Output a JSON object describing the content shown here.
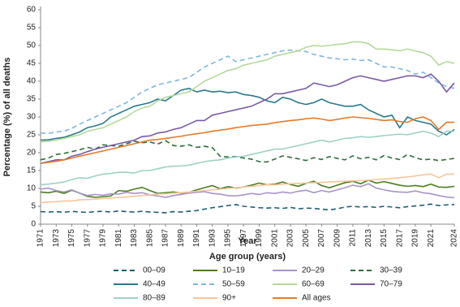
{
  "chart_data": {
    "type": "line",
    "y_label": "Percentage (%) of all deaths",
    "x_label": "Year",
    "legend_title": "Age group (years)",
    "x": [
      1971,
      1972,
      1973,
      1974,
      1975,
      1976,
      1977,
      1978,
      1979,
      1980,
      1981,
      1982,
      1983,
      1984,
      1985,
      1986,
      1987,
      1988,
      1989,
      1990,
      1991,
      1992,
      1993,
      1994,
      1995,
      1996,
      1997,
      1998,
      1999,
      2000,
      2001,
      2002,
      2003,
      2004,
      2005,
      2006,
      2007,
      2008,
      2009,
      2010,
      2011,
      2012,
      2013,
      2014,
      2015,
      2016,
      2017,
      2018,
      2019,
      2020,
      2021,
      2022,
      2023,
      2024
    ],
    "xlim": [
      1971,
      2024
    ],
    "xticks": [
      1971,
      1973,
      1975,
      1977,
      1979,
      1981,
      1983,
      1985,
      1987,
      1989,
      1991,
      1993,
      1995,
      1997,
      1999,
      2001,
      2003,
      2005,
      2007,
      2009,
      2011,
      2013,
      2015,
      2017,
      2019,
      2021,
      2024
    ],
    "ylim": [
      0,
      60
    ],
    "yticks": [
      0,
      5,
      10,
      15,
      20,
      25,
      30,
      35,
      40,
      45,
      50,
      55,
      60
    ],
    "grid": false,
    "legend_position": "bottom",
    "series": [
      {
        "name": "00–09",
        "color": "#1d5c73",
        "dashed": true,
        "values": [
          3.5,
          3.4,
          3.5,
          3.3,
          3.6,
          3.4,
          3.3,
          3.5,
          3.6,
          3.4,
          3.7,
          3.5,
          3.4,
          3.6,
          3.4,
          3.3,
          3.2,
          3.5,
          3.4,
          3.6,
          3.8,
          4.2,
          4.6,
          4.9,
          5.2,
          5.5,
          5.0,
          4.8,
          4.6,
          4.5,
          4.6,
          4.4,
          4.7,
          4.3,
          4.5,
          4.4,
          4.2,
          4.0,
          4.3,
          4.8,
          5.0,
          4.8,
          4.9,
          4.7,
          5.0,
          4.8,
          4.6,
          4.9,
          5.1,
          5.3,
          5.6,
          5.2,
          5.4,
          5.5
        ]
      },
      {
        "name": "10–19",
        "color": "#4a7c1f",
        "dashed": false,
        "values": [
          9.0,
          8.8,
          9.2,
          8.6,
          9.5,
          8.7,
          7.8,
          7.5,
          7.7,
          7.9,
          9.4,
          9.2,
          9.8,
          10.3,
          9.4,
          8.6,
          8.8,
          9.0,
          8.7,
          8.9,
          9.6,
          10.2,
          10.8,
          9.9,
          10.5,
          10.1,
          10.4,
          10.9,
          11.5,
          11.0,
          11.2,
          11.8,
          11.1,
          10.6,
          11.4,
          12.0,
          10.8,
          10.2,
          10.9,
          11.6,
          12.0,
          11.3,
          12.3,
          11.5,
          11.9,
          11.4,
          10.9,
          10.6,
          10.8,
          10.5,
          11.2,
          10.4,
          10.3,
          10.6
        ]
      },
      {
        "name": "20–29",
        "color": "#a894c8",
        "dashed": false,
        "values": [
          9.8,
          10.1,
          9.4,
          9.0,
          9.6,
          8.7,
          8.0,
          8.3,
          8.1,
          8.5,
          8.4,
          8.9,
          8.6,
          8.8,
          8.2,
          7.9,
          7.5,
          8.0,
          8.3,
          8.7,
          8.9,
          9.1,
          8.6,
          8.4,
          8.0,
          7.9,
          8.2,
          8.6,
          8.3,
          8.8,
          8.6,
          9.0,
          8.7,
          9.2,
          9.5,
          8.8,
          9.4,
          9.0,
          9.6,
          10.2,
          10.9,
          10.5,
          11.3,
          10.1,
          9.6,
          9.2,
          9.0,
          8.9,
          9.3,
          8.8,
          8.5,
          8.0,
          7.6,
          7.4
        ]
      },
      {
        "name": "30–39",
        "color": "#2c6e3b",
        "dashed": true,
        "values": [
          18.0,
          18.5,
          19.5,
          19.8,
          20.3,
          20.8,
          21.5,
          21.0,
          22.2,
          22.0,
          21.8,
          22.5,
          23.2,
          22.8,
          23.0,
          22.4,
          23.4,
          22.0,
          21.8,
          22.2,
          21.5,
          21.8,
          21.4,
          19.0,
          18.8,
          18.9,
          18.5,
          18.2,
          17.5,
          17.4,
          18.2,
          19.1,
          18.7,
          18.3,
          17.8,
          18.6,
          18.1,
          18.9,
          18.4,
          18.0,
          19.1,
          18.3,
          18.7,
          18.0,
          19.2,
          18.5,
          18.1,
          19.5,
          18.6,
          18.0,
          18.2,
          17.8,
          18.1,
          18.4
        ]
      },
      {
        "name": "40–49",
        "color": "#2a7a8c",
        "dashed": false,
        "values": [
          23.5,
          23.6,
          24.0,
          24.3,
          25.0,
          25.8,
          27.0,
          27.5,
          28.2,
          30.0,
          31.0,
          32.0,
          33.0,
          33.5,
          34.0,
          35.0,
          34.5,
          36.0,
          37.5,
          38.0,
          37.0,
          37.5,
          37.0,
          37.2,
          36.8,
          37.0,
          36.3,
          36.0,
          35.5,
          34.5,
          34.0,
          35.5,
          35.0,
          34.0,
          33.5,
          34.0,
          35.0,
          34.0,
          33.5,
          33.0,
          33.0,
          33.5,
          32.0,
          31.0,
          30.0,
          30.5,
          27.0,
          30.0,
          29.0,
          28.5,
          28.0,
          26.0,
          25.0,
          26.5
        ]
      },
      {
        "name": "50–59",
        "color": "#7fb8dd",
        "dashed": true,
        "values": [
          25.5,
          25.4,
          25.8,
          26.0,
          26.8,
          28.0,
          29.0,
          30.0,
          31.0,
          32.0,
          33.0,
          34.0,
          35.5,
          37.0,
          38.0,
          39.0,
          39.5,
          40.0,
          40.5,
          41.0,
          42.5,
          44.0,
          45.0,
          46.0,
          47.0,
          45.5,
          46.0,
          46.5,
          47.0,
          47.5,
          48.0,
          48.5,
          48.7,
          48.5,
          48.3,
          47.5,
          47.0,
          46.5,
          46.3,
          46.0,
          46.2,
          45.8,
          46.0,
          45.0,
          44.0,
          44.0,
          43.5,
          43.0,
          42.0,
          42.5,
          41.0,
          39.5,
          38.5,
          38.0
        ]
      },
      {
        "name": "60–69",
        "color": "#b5d99a",
        "dashed": false,
        "values": [
          23.0,
          23.2,
          23.5,
          24.0,
          24.5,
          25.0,
          26.0,
          26.5,
          27.0,
          28.0,
          29.0,
          30.0,
          31.5,
          32.5,
          33.0,
          34.5,
          35.5,
          36.0,
          36.5,
          37.0,
          38.5,
          40.0,
          41.0,
          42.0,
          43.0,
          43.5,
          44.5,
          45.0,
          45.5,
          46.0,
          47.0,
          47.5,
          48.0,
          48.5,
          49.5,
          50.0,
          49.8,
          50.0,
          50.3,
          50.5,
          51.0,
          51.0,
          50.5,
          49.0,
          49.0,
          48.8,
          48.5,
          49.0,
          48.5,
          48.0,
          47.0,
          44.5,
          45.5,
          45.0
        ]
      },
      {
        "name": "70–79",
        "color": "#7a5aa6",
        "dashed": false,
        "values": [
          17.0,
          17.5,
          18.0,
          18.0,
          19.0,
          19.5,
          20.3,
          21.0,
          21.5,
          22.0,
          22.5,
          23.0,
          23.5,
          24.5,
          24.7,
          25.5,
          25.8,
          26.5,
          27.0,
          28.0,
          29.0,
          29.0,
          30.5,
          31.0,
          31.5,
          32.0,
          32.5,
          33.0,
          34.0,
          35.0,
          36.5,
          36.5,
          37.0,
          37.5,
          38.0,
          39.5,
          39.0,
          38.5,
          39.0,
          40.0,
          41.0,
          41.5,
          41.0,
          40.5,
          40.0,
          40.5,
          41.0,
          41.5,
          41.5,
          41.0,
          42.0,
          40.0,
          37.0,
          39.5
        ]
      },
      {
        "name": "80–89",
        "color": "#9ed2c6",
        "dashed": false,
        "values": [
          11.0,
          11.2,
          11.5,
          11.8,
          12.5,
          13.0,
          12.8,
          13.5,
          14.0,
          14.2,
          14.5,
          14.5,
          14.3,
          15.0,
          15.0,
          15.5,
          16.0,
          16.2,
          16.3,
          16.5,
          17.0,
          17.5,
          17.8,
          18.0,
          18.5,
          18.8,
          19.0,
          19.5,
          20.0,
          20.5,
          21.0,
          21.0,
          21.5,
          22.0,
          22.5,
          23.0,
          23.5,
          23.0,
          23.5,
          24.0,
          24.2,
          24.5,
          24.3,
          24.5,
          24.8,
          25.0,
          25.2,
          25.0,
          25.5,
          26.0,
          25.5,
          24.5,
          26.0,
          26.0
        ]
      },
      {
        "name": "90+",
        "color": "#f7c49a",
        "dashed": false,
        "values": [
          6.0,
          6.2,
          6.3,
          6.5,
          6.5,
          6.8,
          6.9,
          7.0,
          7.2,
          7.3,
          7.5,
          7.6,
          7.8,
          8.0,
          8.2,
          8.4,
          8.5,
          8.7,
          8.8,
          9.0,
          9.2,
          9.4,
          9.6,
          9.8,
          10.0,
          10.2,
          10.4,
          10.6,
          10.8,
          11.0,
          11.0,
          11.2,
          11.3,
          11.4,
          11.5,
          11.6,
          11.7,
          11.8,
          11.9,
          12.0,
          12.1,
          12.2,
          12.3,
          12.5,
          12.6,
          12.8,
          13.0,
          13.2,
          13.5,
          13.8,
          14.0,
          13.0,
          14.0,
          14.0
        ]
      },
      {
        "name": "All ages",
        "color": "#e67a2a",
        "dashed": false,
        "values": [
          17.0,
          17.3,
          17.6,
          18.0,
          18.5,
          19.0,
          19.5,
          20.0,
          20.5,
          21.0,
          21.5,
          22.0,
          22.5,
          23.0,
          23.5,
          23.7,
          24.0,
          24.3,
          24.6,
          25.0,
          25.3,
          25.6,
          26.0,
          26.3,
          26.6,
          27.0,
          27.3,
          27.6,
          27.8,
          28.0,
          28.4,
          28.7,
          29.0,
          29.2,
          29.5,
          29.7,
          29.4,
          29.0,
          29.3,
          29.7,
          30.0,
          29.8,
          29.6,
          29.3,
          29.0,
          29.2,
          28.7,
          28.5,
          29.5,
          30.0,
          29.0,
          26.5,
          28.5,
          28.5
        ]
      }
    ]
  }
}
